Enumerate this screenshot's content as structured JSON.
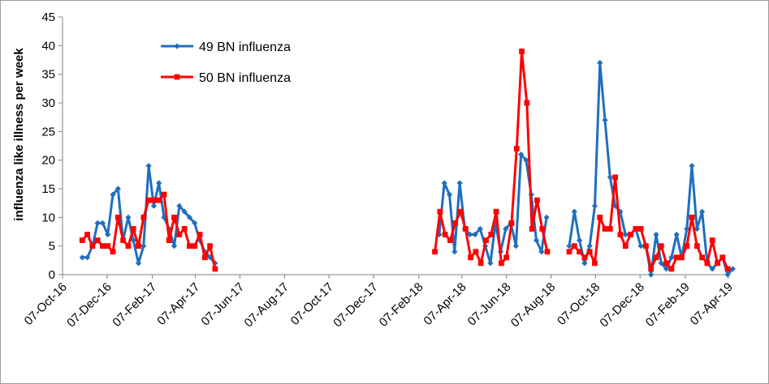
{
  "chart_data": {
    "type": "line",
    "title": "",
    "xlabel": "",
    "ylabel": "influenza like illness per week",
    "ylim": [
      0,
      45
    ],
    "yticks": [
      0,
      5,
      10,
      15,
      20,
      25,
      30,
      35,
      40,
      45
    ],
    "xlim": [
      "2016-10-07",
      "2019-04-07"
    ],
    "xtick_labels": [
      "07-Oct-16",
      "07-Dec-16",
      "07-Feb-17",
      "07-Apr-17",
      "07-Jun-17",
      "07-Aug-17",
      "07-Oct-17",
      "07-Dec-17",
      "07-Feb-18",
      "07-Apr-18",
      "07-Jun-18",
      "07-Aug-18",
      "07-Oct-18",
      "07-Dec-18",
      "07-Feb-19",
      "07-Apr-19"
    ],
    "xtick_dates": [
      "2016-10-07",
      "2016-12-07",
      "2017-02-07",
      "2017-04-07",
      "2017-06-07",
      "2017-08-07",
      "2017-10-07",
      "2017-12-07",
      "2018-02-07",
      "2018-04-07",
      "2018-06-07",
      "2018-08-07",
      "2018-10-07",
      "2018-12-07",
      "2019-02-07",
      "2019-04-07"
    ],
    "grid": false,
    "legend_position": "top-left",
    "series": [
      {
        "name": "49 BN influenza",
        "color": "#1f6fbf",
        "marker": "diamond",
        "segments": [
          {
            "start": "2016-11-03",
            "values": [
              3,
              3,
              5,
              9,
              9,
              7,
              14,
              15,
              6,
              10,
              6,
              2,
              5,
              19,
              12,
              16,
              10,
              8,
              5,
              12,
              11,
              10,
              9,
              6,
              4,
              3,
              2
            ]
          },
          {
            "start": "2018-03-07",
            "values": [
              7,
              16,
              14,
              4,
              16,
              8,
              7,
              7,
              8,
              5,
              2,
              9,
              4,
              8,
              9,
              5,
              21,
              20,
              14,
              6,
              4,
              10
            ]
          },
          {
            "start": "2018-09-01",
            "values": [
              5,
              11,
              6,
              2,
              5,
              12,
              37,
              27,
              17,
              12,
              11,
              7,
              7,
              8,
              5,
              5,
              0,
              7,
              2,
              1,
              3,
              7,
              3,
              8,
              19,
              8,
              11,
              2,
              1,
              2,
              3,
              0,
              1
            ]
          }
        ]
      },
      {
        "name": "50 BN influenza",
        "color": "#ff0000",
        "marker": "square",
        "segments": [
          {
            "start": "2016-11-03",
            "values": [
              6,
              7,
              5,
              6,
              5,
              5,
              4,
              10,
              6,
              5,
              8,
              5,
              10,
              13,
              13,
              13,
              14,
              6,
              10,
              7,
              8,
              5,
              5,
              7,
              3,
              5,
              1
            ]
          },
          {
            "start": "2018-03-01",
            "values": [
              4,
              11,
              7,
              6,
              9,
              11,
              8,
              3,
              4,
              2,
              6,
              7,
              11,
              2,
              3,
              9,
              22,
              39,
              30,
              8,
              13,
              8,
              4
            ]
          },
          {
            "start": "2018-09-01",
            "values": [
              4,
              5,
              4,
              3,
              4,
              2,
              10,
              8,
              8,
              17,
              7,
              5,
              7,
              8,
              8,
              5,
              1,
              3,
              5,
              2,
              1,
              3,
              3,
              5,
              10,
              5,
              3,
              2,
              6,
              2,
              3,
              1
            ]
          }
        ]
      }
    ]
  }
}
